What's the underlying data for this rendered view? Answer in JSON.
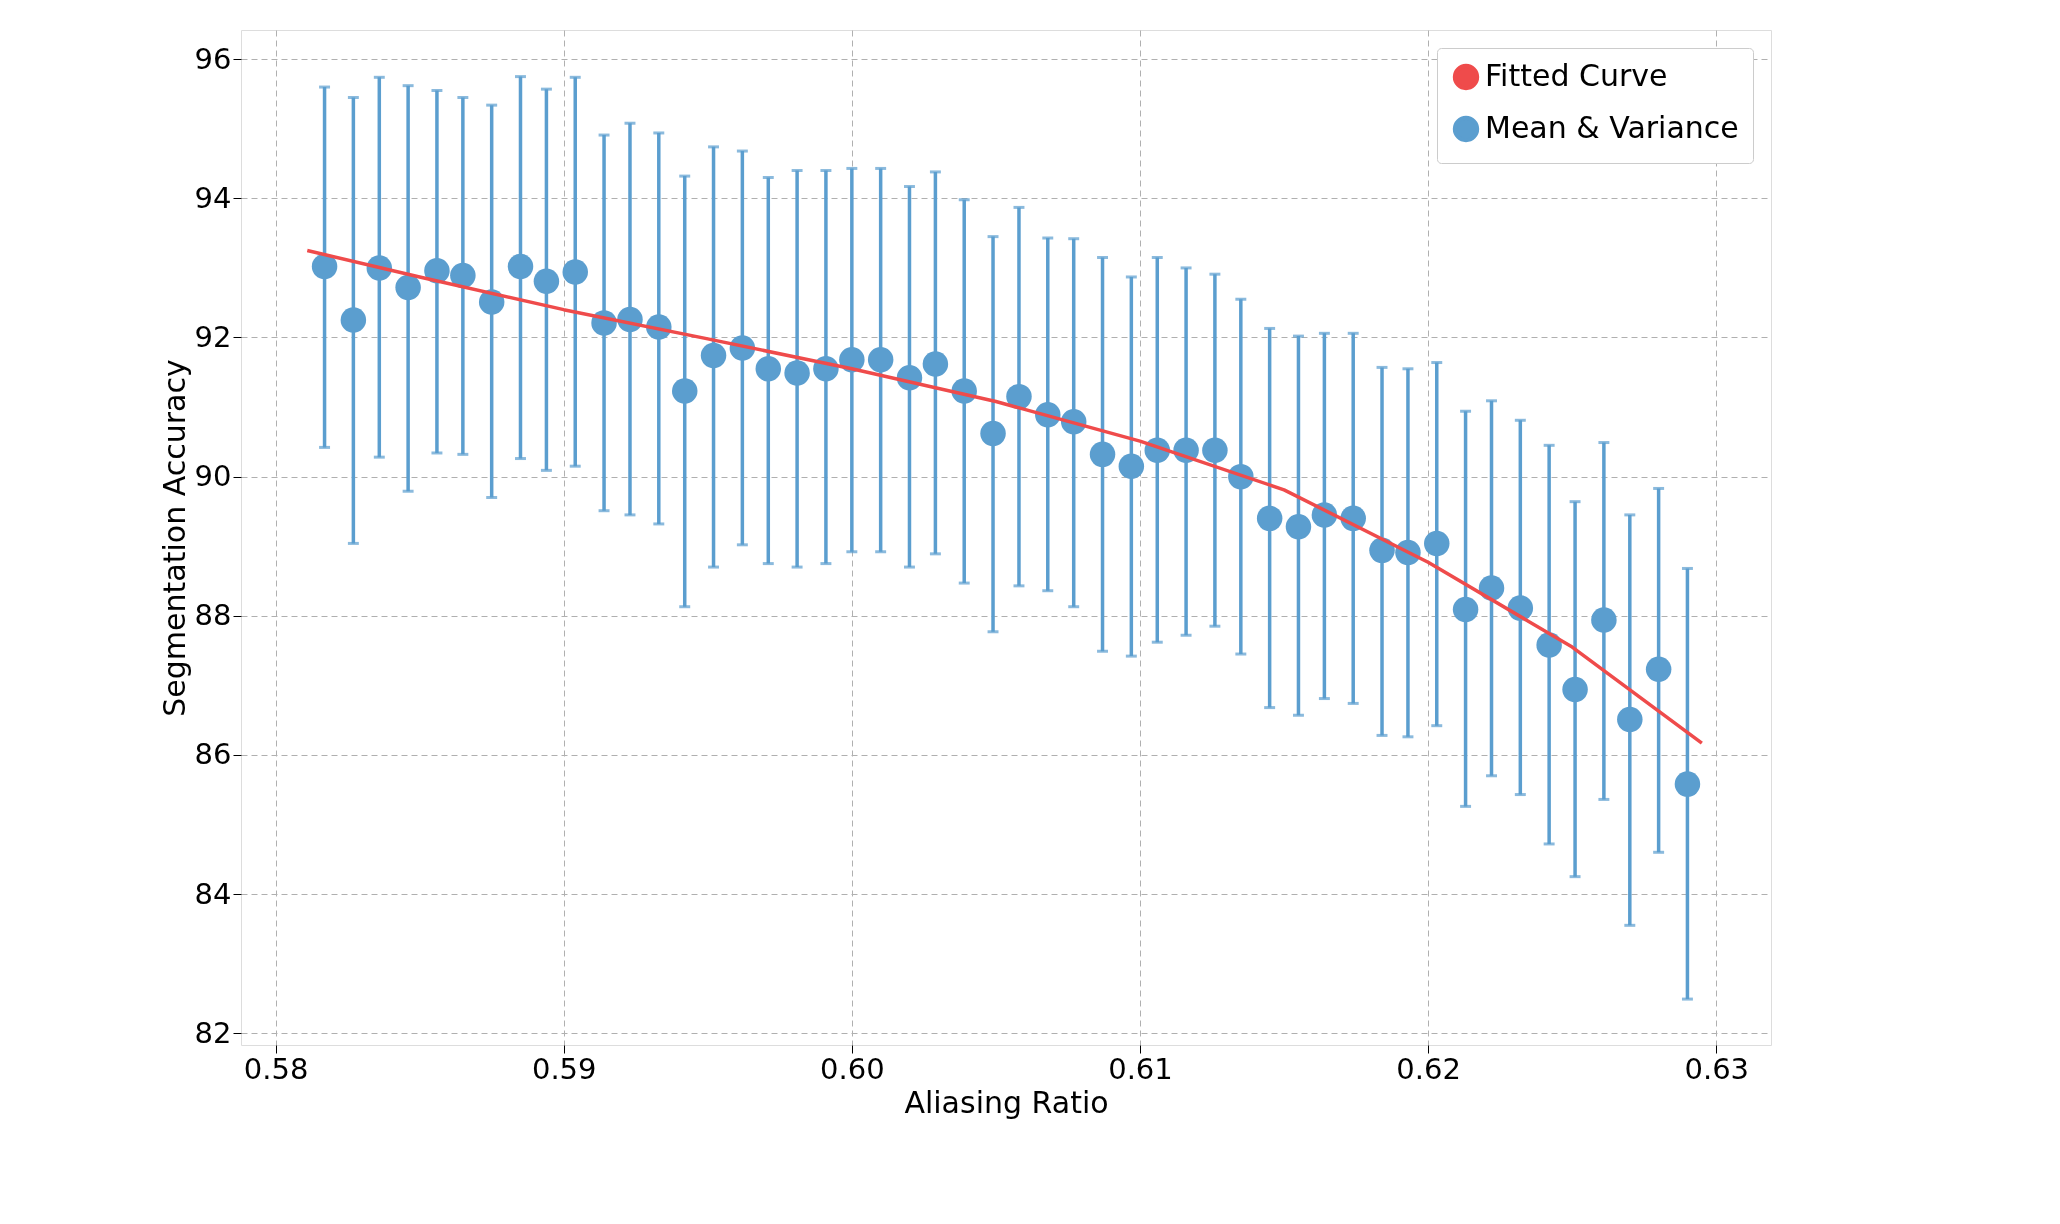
{
  "chart_data": {
    "type": "scatter",
    "xlabel": "Aliasing Ratio",
    "ylabel": "Segmentation Accuracy",
    "xlim": [
      0.5788,
      0.6319
    ],
    "ylim": [
      81.83,
      96.42
    ],
    "xticks": [
      0.58,
      0.59,
      {
        "value": 0.6,
        "label": "0.60"
      },
      0.61,
      0.62,
      0.63
    ],
    "yticks": [
      82,
      84,
      86,
      88,
      90,
      92,
      94,
      96
    ],
    "grid": true,
    "legend": "top right",
    "series": [
      {
        "name": "Fitted Curve",
        "type": "line",
        "color": "#ef4b4b",
        "line_style": "solid",
        "marker": "none",
        "x": [
          0.5811,
          0.585,
          0.59,
          0.595,
          0.6,
          0.605,
          0.61,
          0.615,
          0.62,
          0.625,
          0.6295
        ],
        "values": [
          93.25,
          92.87,
          92.4,
          91.98,
          91.55,
          91.08,
          90.51,
          89.81,
          88.77,
          87.55,
          86.17
        ]
      },
      {
        "name": "Mean & Variance",
        "color": "#5b9ecf",
        "marker": "circle",
        "x": [
          0.5817,
          0.5827,
          0.5836,
          0.5846,
          0.5856,
          0.5865,
          0.5875,
          0.5885,
          0.5894,
          0.5904,
          0.5914,
          0.5923,
          0.5933,
          0.5942,
          0.5952,
          0.5962,
          0.5971,
          0.5981,
          0.5991,
          0.6,
          0.601,
          0.602,
          0.6029,
          0.6039,
          0.6049,
          0.6058,
          0.6068,
          0.6077,
          0.6087,
          0.6097,
          0.6106,
          0.6116,
          0.6126,
          0.6135,
          0.6145,
          0.6155,
          0.6164,
          0.6174,
          0.6184,
          0.6193,
          0.6203,
          0.6213,
          0.6222,
          0.6232,
          0.6242,
          0.6251,
          0.6261,
          0.627,
          0.628,
          0.629
        ],
        "values": [
          93.02,
          92.25,
          93.0,
          92.72,
          92.96,
          92.89,
          92.51,
          93.02,
          92.81,
          92.94,
          92.21,
          92.26,
          92.15,
          91.23,
          91.74,
          91.85,
          91.55,
          91.49,
          91.55,
          91.68,
          91.68,
          91.42,
          91.62,
          91.23,
          90.62,
          91.15,
          90.89,
          90.79,
          90.32,
          90.15,
          90.38,
          90.38,
          90.38,
          90.0,
          89.4,
          89.28,
          89.45,
          89.4,
          88.94,
          88.91,
          89.04,
          88.09,
          88.4,
          88.11,
          87.58,
          86.94,
          87.94,
          86.51,
          87.23,
          85.58
        ],
        "errors": [
          [
            90.42,
            95.6
          ],
          [
            89.04,
            95.45
          ],
          [
            90.28,
            95.74
          ],
          [
            89.79,
            95.62
          ],
          [
            90.34,
            95.55
          ],
          [
            90.32,
            95.45
          ],
          [
            89.7,
            95.34
          ],
          [
            90.26,
            95.75
          ],
          [
            90.09,
            95.57
          ],
          [
            90.15,
            95.74
          ],
          [
            89.51,
            94.91
          ],
          [
            89.45,
            95.08
          ],
          [
            89.32,
            94.94
          ],
          [
            88.13,
            94.32
          ],
          [
            88.7,
            94.74
          ],
          [
            89.02,
            94.68
          ],
          [
            88.75,
            94.3
          ],
          [
            88.7,
            94.4
          ],
          [
            88.75,
            94.4
          ],
          [
            88.92,
            94.43
          ],
          [
            88.92,
            94.43
          ],
          [
            88.7,
            94.17
          ],
          [
            88.89,
            94.38
          ],
          [
            88.47,
            93.98
          ],
          [
            87.77,
            93.45
          ],
          [
            88.43,
            93.87
          ],
          [
            88.36,
            93.43
          ],
          [
            88.13,
            93.42
          ],
          [
            87.49,
            93.15
          ],
          [
            87.42,
            92.87
          ],
          [
            87.62,
            93.15
          ],
          [
            87.72,
            93.0
          ],
          [
            87.85,
            92.91
          ],
          [
            87.45,
            92.55
          ],
          [
            86.68,
            92.13
          ],
          [
            86.57,
            92.02
          ],
          [
            86.81,
            92.06
          ],
          [
            86.74,
            92.06
          ],
          [
            86.28,
            91.57
          ],
          [
            86.26,
            91.55
          ],
          [
            86.42,
            91.64
          ],
          [
            85.26,
            90.94
          ],
          [
            85.7,
            91.09
          ],
          [
            85.43,
            90.81
          ],
          [
            84.72,
            90.45
          ],
          [
            84.25,
            89.64
          ],
          [
            85.36,
            90.49
          ],
          [
            83.55,
            89.45
          ],
          [
            84.6,
            89.83
          ],
          [
            82.49,
            88.68
          ]
        ]
      }
    ]
  }
}
